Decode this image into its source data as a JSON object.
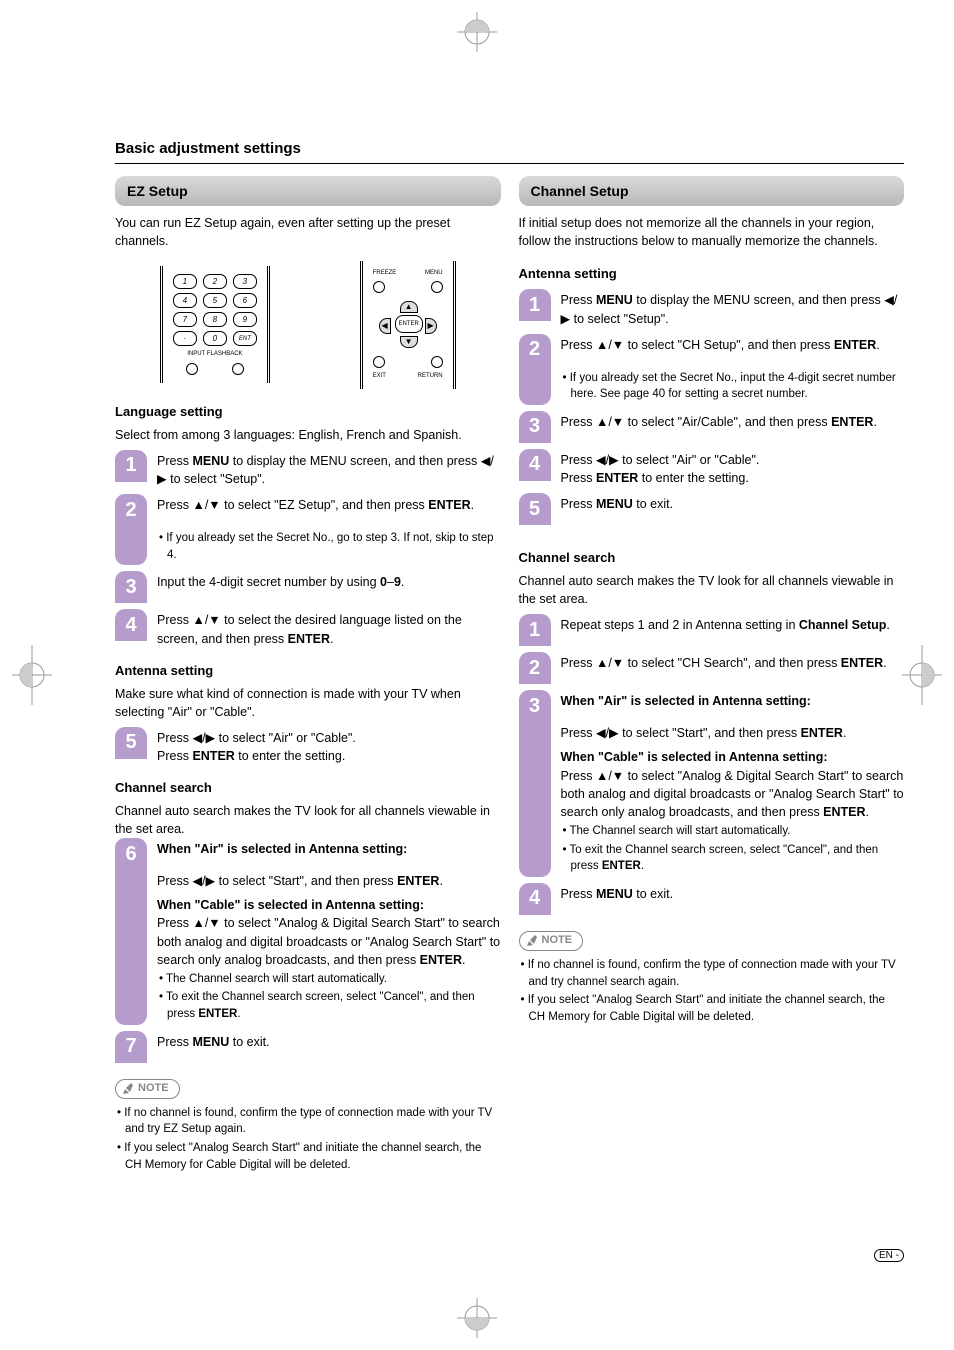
{
  "colors": {
    "step_bg": "#b59ccc",
    "header_grad_top": "#d9d9d9",
    "header_grad_bottom": "#b8b8b8",
    "note_border": "#888888",
    "page_bg": "#ffffff",
    "text": "#000000"
  },
  "page": {
    "title": "Basic adjustment settings"
  },
  "left": {
    "header": "EZ Setup",
    "intro": "You can run EZ Setup again, even after setting up the preset channels.",
    "remote": {
      "keypad_rows": [
        [
          "1",
          "2",
          "3"
        ],
        [
          "4",
          "5",
          "6"
        ],
        [
          "7",
          "8",
          "9"
        ],
        [
          "·",
          "0",
          "ENT"
        ]
      ],
      "keypad_sublabels": [
        "INPUT",
        "FLASHBACK"
      ],
      "nav_labels": {
        "tl": "FREEZE",
        "tr": "MENU",
        "bl": "EXIT",
        "br": "RETURN",
        "center": "ENTER"
      }
    },
    "lang": {
      "heading": "Language setting",
      "intro": "Select from among 3 languages: English, French and Spanish.",
      "steps": {
        "s1": {
          "num": "1",
          "body": "Press <b>MENU</b> to display the MENU screen, and then press <span class='tri'>◀</span>/<span class='tri'>▶</span> to select \"Setup\"."
        },
        "s2": {
          "num": "2",
          "body": "Press <span class='tri'>▲</span>/<span class='tri'>▼</span> to select \"EZ Setup\", and then press <b>ENTER</b>.",
          "bullets": [
            "If you already set the Secret No., go to step 3. If not, skip to step 4."
          ]
        },
        "s3": {
          "num": "3",
          "body": "Input the 4-digit secret number by using <b>0</b>–<b>9</b>."
        },
        "s4": {
          "num": "4",
          "body": "Press <span class='tri'>▲</span>/<span class='tri'>▼</span> to select the desired language listed on the screen, and then press <b>ENTER</b>."
        }
      }
    },
    "antenna": {
      "heading": "Antenna setting",
      "intro": "Make sure what kind of connection is made with your TV when selecting \"Air\" or \"Cable\".",
      "step": {
        "num": "5",
        "body": "Press <span class='tri'>◀</span>/<span class='tri'>▶</span> to select \"Air\" or \"Cable\".<br>Press <b>ENTER</b> to enter the setting."
      }
    },
    "search": {
      "heading": "Channel search",
      "intro": "Channel auto search makes the TV look for all channels viewable in the set area.",
      "s6": {
        "num": "6",
        "air_head": "When \"Air\" is selected in Antenna setting:",
        "air_body": "Press <span class='tri'>◀</span>/<span class='tri'>▶</span> to select \"Start\", and then press <b>ENTER</b>.",
        "cable_head": "When \"Cable\" is selected in Antenna setting:",
        "cable_body": "Press <span class='tri'>▲</span>/<span class='tri'>▼</span> to select \"Analog & Digital Search Start\" to search both analog and digital broadcasts or \"Analog Search Start\" to search only analog broadcasts, and then press <b>ENTER</b>.",
        "bullets": [
          "The Channel search will start automatically.",
          "To exit the Channel search screen, select \"Cancel\", and then press <b>ENTER</b>."
        ]
      },
      "s7": {
        "num": "7",
        "body": "Press <b>MENU</b> to exit."
      }
    },
    "note": {
      "label": "NOTE",
      "bullets": [
        "If no channel is found, confirm the type of connection made with your TV and try EZ Setup again.",
        "If you select \"Analog Search Start\" and initiate the channel search, the CH Memory for Cable Digital will be deleted."
      ]
    }
  },
  "right": {
    "header": "Channel Setup",
    "intro": "If initial setup does not memorize all the channels in your region, follow the instructions below to manually memorize the channels.",
    "antenna": {
      "heading": "Antenna setting",
      "s1": {
        "num": "1",
        "body": "Press <b>MENU</b> to display the MENU screen, and then press <span class='tri'>◀</span>/<span class='tri'>▶</span> to select \"Setup\"."
      },
      "s2": {
        "num": "2",
        "body": "Press <span class='tri'>▲</span>/<span class='tri'>▼</span> to select \"CH Setup\", and then press <b>ENTER</b>.",
        "bullets": [
          "If you already set the Secret No., input the 4-digit secret number here. See page 40 for setting a secret number."
        ]
      },
      "s3": {
        "num": "3",
        "body": "Press <span class='tri'>▲</span>/<span class='tri'>▼</span> to select \"Air/Cable\", and then press  <b>ENTER</b>."
      },
      "s4": {
        "num": "4",
        "body": "Press <span class='tri'>◀</span>/<span class='tri'>▶</span> to select \"Air\" or \"Cable\".<br>Press <b>ENTER</b> to enter the setting."
      },
      "s5": {
        "num": "5",
        "body": "Press <b>MENU</b> to exit."
      }
    },
    "search": {
      "heading": "Channel search",
      "intro": "Channel auto search makes the TV look for all channels viewable in the set area.",
      "s1": {
        "num": "1",
        "body": "Repeat steps 1 and 2 in Antenna setting in <b>Channel Setup</b>."
      },
      "s2": {
        "num": "2",
        "body": "Press <span class='tri'>▲</span>/<span class='tri'>▼</span> to select \"CH Search\", and then press <b>ENTER</b>."
      },
      "s3": {
        "num": "3",
        "air_head": "When \"Air\" is selected in Antenna setting:",
        "air_body": "Press <span class='tri'>◀</span>/<span class='tri'>▶</span> to select \"Start\", and then press <b>ENTER</b>.",
        "cable_head": "When \"Cable\" is selected in Antenna setting:",
        "cable_body": "Press <span class='tri'>▲</span>/<span class='tri'>▼</span> to select \"Analog & Digital Search Start\" to search both analog and digital broadcasts or \"Analog Search Start\" to search only analog broadcasts, and then press <b>ENTER</b>.",
        "bullets": [
          "The Channel search will start automatically.",
          "To exit the Channel search screen, select \"Cancel\", and then press <b>ENTER</b>."
        ]
      },
      "s4": {
        "num": "4",
        "body": "Press <b>MENU</b> to exit."
      }
    },
    "note": {
      "label": "NOTE",
      "bullets": [
        "If no channel is found, confirm the type of connection made with your TV and try channel search again.",
        "If you select \"Analog Search Start\" and initiate the channel search, the CH Memory for Cable Digital will be deleted."
      ]
    }
  },
  "footer": {
    "lang_badge": "EN"
  }
}
